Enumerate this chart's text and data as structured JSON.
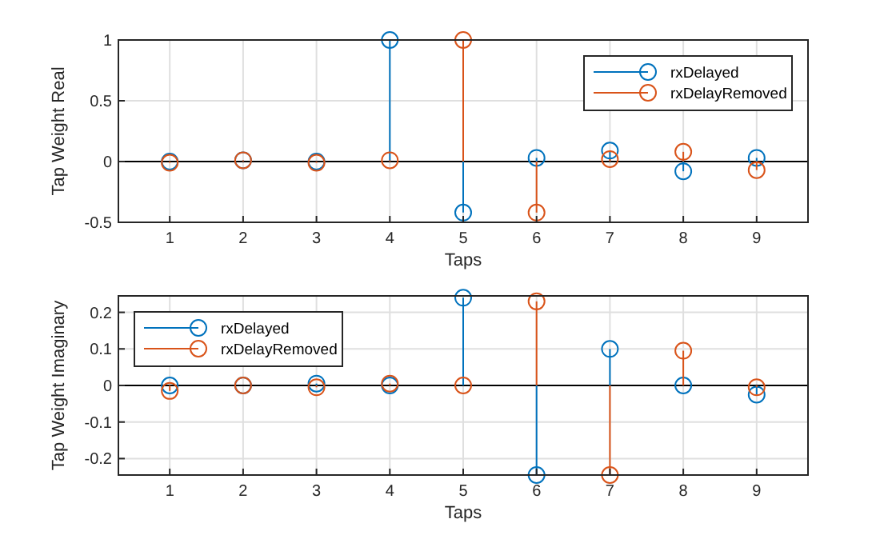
{
  "chart_data": [
    {
      "type": "lollipop",
      "xlabel": "Taps",
      "ylabel": "Tap Weight Real",
      "x": [
        1,
        2,
        3,
        4,
        5,
        6,
        7,
        8,
        9
      ],
      "xlim": [
        0.3,
        9.7
      ],
      "xticks": [
        1,
        2,
        3,
        4,
        5,
        6,
        7,
        8,
        9
      ],
      "ylim": [
        -0.5,
        1
      ],
      "yticks": [
        -0.5,
        0,
        0.5,
        1
      ],
      "grid": true,
      "legend": "top right",
      "marker": "circle",
      "series": [
        {
          "name": "rxDelayed",
          "color": "#0072bd",
          "values": [
            0,
            0.01,
            0,
            1,
            -0.42,
            0.03,
            0.09,
            -0.08,
            0.03
          ]
        },
        {
          "name": "rxDelayRemoved",
          "color": "#d95319",
          "values": [
            -0.01,
            0.01,
            -0.01,
            0.01,
            1,
            -0.42,
            0.02,
            0.08,
            -0.07
          ]
        }
      ]
    },
    {
      "type": "lollipop",
      "xlabel": "Taps",
      "ylabel": "Tap Weight Imaginary",
      "x": [
        1,
        2,
        3,
        4,
        5,
        6,
        7,
        8,
        9
      ],
      "xlim": [
        0.3,
        9.7
      ],
      "xticks": [
        1,
        2,
        3,
        4,
        5,
        6,
        7,
        8,
        9
      ],
      "ylim": [
        -0.245,
        0.245
      ],
      "yticks": [
        -0.2,
        -0.1,
        0,
        0.1,
        0.2
      ],
      "grid": true,
      "legend": "top left",
      "marker": "circle",
      "series": [
        {
          "name": "rxDelayed",
          "color": "#0072bd",
          "values": [
            0,
            0,
            0.005,
            0,
            0.24,
            -0.245,
            0.1,
            0,
            -0.025
          ]
        },
        {
          "name": "rxDelayRemoved",
          "color": "#d95319",
          "values": [
            -0.015,
            0,
            -0.005,
            0.005,
            0,
            0.23,
            -0.245,
            0.095,
            -0.005
          ]
        }
      ]
    }
  ]
}
